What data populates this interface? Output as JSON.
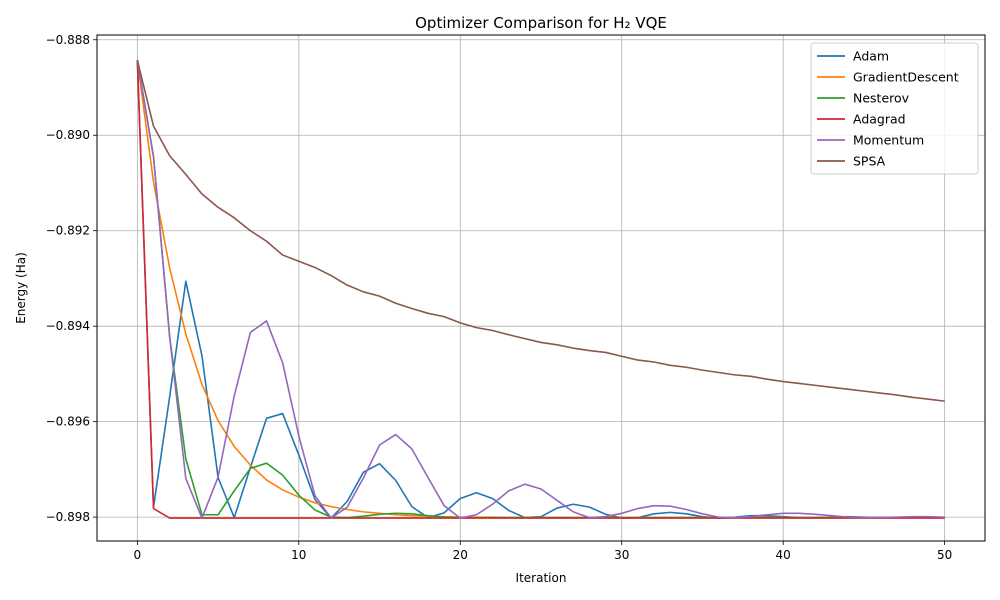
{
  "chart_data": {
    "type": "line",
    "title": "Optimizer Comparison for H₂ VQE",
    "xlabel": "Iteration",
    "ylabel": "Energy (Ha)",
    "xlim": [
      -2.5,
      52.5
    ],
    "ylim": [
      -0.8985,
      -0.8879
    ],
    "x_ticks": [
      0,
      10,
      20,
      30,
      40,
      50
    ],
    "y_ticks": [
      -0.898,
      -0.896,
      -0.894,
      -0.892,
      -0.89,
      -0.888
    ],
    "x_tick_labels": [
      "0",
      "10",
      "20",
      "30",
      "40",
      "50"
    ],
    "y_tick_labels": [
      "−0.898",
      "−0.896",
      "−0.894",
      "−0.892",
      "−0.890",
      "−0.888"
    ],
    "grid": true,
    "legend_position": "top-right",
    "x": [
      0,
      1,
      2,
      3,
      4,
      5,
      6,
      7,
      8,
      9,
      10,
      11,
      12,
      13,
      14,
      15,
      16,
      17,
      18,
      19,
      20,
      21,
      22,
      23,
      24,
      25,
      26,
      27,
      28,
      29,
      30,
      31,
      32,
      33,
      34,
      35,
      36,
      37,
      38,
      39,
      40,
      41,
      42,
      43,
      44,
      45,
      46,
      47,
      48,
      49,
      50
    ],
    "series": [
      {
        "name": "Adam",
        "color": "#1f77b4",
        "values": [
          -0.88843,
          -0.89779,
          -0.89548,
          -0.89306,
          -0.89462,
          -0.89717,
          -0.89801,
          -0.89696,
          -0.89593,
          -0.89583,
          -0.8967,
          -0.89763,
          -0.89802,
          -0.89767,
          -0.89706,
          -0.89688,
          -0.89723,
          -0.89778,
          -0.89801,
          -0.89791,
          -0.89761,
          -0.89749,
          -0.89761,
          -0.89786,
          -0.89801,
          -0.89799,
          -0.89781,
          -0.89773,
          -0.89779,
          -0.89794,
          -0.89802,
          -0.89801,
          -0.89793,
          -0.8979,
          -0.89793,
          -0.89799,
          -0.89802,
          -0.898,
          -0.89797,
          -0.89797,
          -0.89799,
          -0.89801,
          -0.89801,
          -0.898,
          -0.89799,
          -0.898,
          -0.89801,
          -0.89801,
          -0.89801,
          -0.89801,
          -0.89801
        ]
      },
      {
        "name": "GradientDescent",
        "color": "#ff7f0e",
        "values": [
          -0.88843,
          -0.89098,
          -0.89278,
          -0.89416,
          -0.89522,
          -0.89598,
          -0.89652,
          -0.89691,
          -0.89722,
          -0.89743,
          -0.89758,
          -0.8977,
          -0.89778,
          -0.89784,
          -0.89789,
          -0.89792,
          -0.89795,
          -0.89797,
          -0.89798,
          -0.89799,
          -0.898,
          -0.898,
          -0.898,
          -0.89801,
          -0.89801,
          -0.89801,
          -0.89801,
          -0.89801,
          -0.89801,
          -0.89801,
          -0.89801,
          -0.89801,
          -0.89801,
          -0.89801,
          -0.89801,
          -0.89801,
          -0.89801,
          -0.89801,
          -0.89801,
          -0.89801,
          -0.89801,
          -0.89801,
          -0.89801,
          -0.89801,
          -0.89801,
          -0.89801,
          -0.89801,
          -0.89801,
          -0.89801,
          -0.89801,
          -0.89801
        ]
      },
      {
        "name": "Nesterov",
        "color": "#2ca02c",
        "values": [
          -0.88843,
          -0.89045,
          -0.89422,
          -0.89678,
          -0.89795,
          -0.89795,
          -0.89745,
          -0.89698,
          -0.89687,
          -0.89712,
          -0.89754,
          -0.89785,
          -0.898,
          -0.89801,
          -0.89798,
          -0.89794,
          -0.89792,
          -0.89793,
          -0.89797,
          -0.898,
          -0.89801,
          -0.89801,
          -0.89801,
          -0.89801,
          -0.89801,
          -0.89801,
          -0.89801,
          -0.89801,
          -0.89801,
          -0.89801,
          -0.89801,
          -0.89801,
          -0.89801,
          -0.89801,
          -0.89801,
          -0.89801,
          -0.89801,
          -0.89801,
          -0.89801,
          -0.89801,
          -0.89801,
          -0.89801,
          -0.89801,
          -0.89801,
          -0.89801,
          -0.89801,
          -0.89801,
          -0.89801,
          -0.89801,
          -0.89801,
          -0.89801
        ]
      },
      {
        "name": "Adagrad",
        "color": "#d62728",
        "values": [
          -0.88843,
          -0.89782,
          -0.89802,
          -0.89802,
          -0.89802,
          -0.89802,
          -0.89802,
          -0.89802,
          -0.89802,
          -0.89802,
          -0.89802,
          -0.89802,
          -0.89802,
          -0.89802,
          -0.89802,
          -0.89802,
          -0.89802,
          -0.89802,
          -0.89802,
          -0.89802,
          -0.89802,
          -0.89802,
          -0.89802,
          -0.89802,
          -0.89802,
          -0.89802,
          -0.89802,
          -0.89802,
          -0.89802,
          -0.89802,
          -0.89802,
          -0.89802,
          -0.89802,
          -0.89802,
          -0.89802,
          -0.89802,
          -0.89802,
          -0.89802,
          -0.89802,
          -0.89802,
          -0.89802,
          -0.89802,
          -0.89802,
          -0.89802,
          -0.89802,
          -0.89802,
          -0.89802,
          -0.89802,
          -0.89802,
          -0.89802,
          -0.89802
        ]
      },
      {
        "name": "Momentum",
        "color": "#9467bd",
        "values": [
          -0.88843,
          -0.89045,
          -0.89422,
          -0.89719,
          -0.89802,
          -0.89716,
          -0.89546,
          -0.89413,
          -0.89389,
          -0.89477,
          -0.8963,
          -0.89755,
          -0.89802,
          -0.89779,
          -0.89718,
          -0.89649,
          -0.89627,
          -0.89657,
          -0.89717,
          -0.89776,
          -0.89802,
          -0.89795,
          -0.89773,
          -0.89745,
          -0.89731,
          -0.89741,
          -0.89765,
          -0.89789,
          -0.89801,
          -0.89799,
          -0.89792,
          -0.89782,
          -0.89776,
          -0.89777,
          -0.89784,
          -0.89793,
          -0.898,
          -0.89801,
          -0.89799,
          -0.89795,
          -0.89792,
          -0.89792,
          -0.89794,
          -0.89797,
          -0.898,
          -0.89801,
          -0.89801,
          -0.898,
          -0.89799,
          -0.89799,
          -0.898
        ]
      },
      {
        "name": "SPSA",
        "color": "#8c564b",
        "values": [
          -0.88843,
          -0.88981,
          -0.89043,
          -0.89082,
          -0.89123,
          -0.89151,
          -0.89173,
          -0.892,
          -0.89222,
          -0.89251,
          -0.89264,
          -0.89277,
          -0.89294,
          -0.89314,
          -0.89328,
          -0.89337,
          -0.89352,
          -0.89363,
          -0.89373,
          -0.8938,
          -0.89393,
          -0.89403,
          -0.89409,
          -0.89418,
          -0.89426,
          -0.89434,
          -0.89439,
          -0.89446,
          -0.89451,
          -0.89455,
          -0.89463,
          -0.89471,
          -0.89475,
          -0.89482,
          -0.89486,
          -0.89492,
          -0.89497,
          -0.89502,
          -0.89505,
          -0.89511,
          -0.89516,
          -0.8952,
          -0.89524,
          -0.89528,
          -0.89532,
          -0.89536,
          -0.8954,
          -0.89544,
          -0.89549,
          -0.89553,
          -0.89557
        ]
      }
    ]
  }
}
